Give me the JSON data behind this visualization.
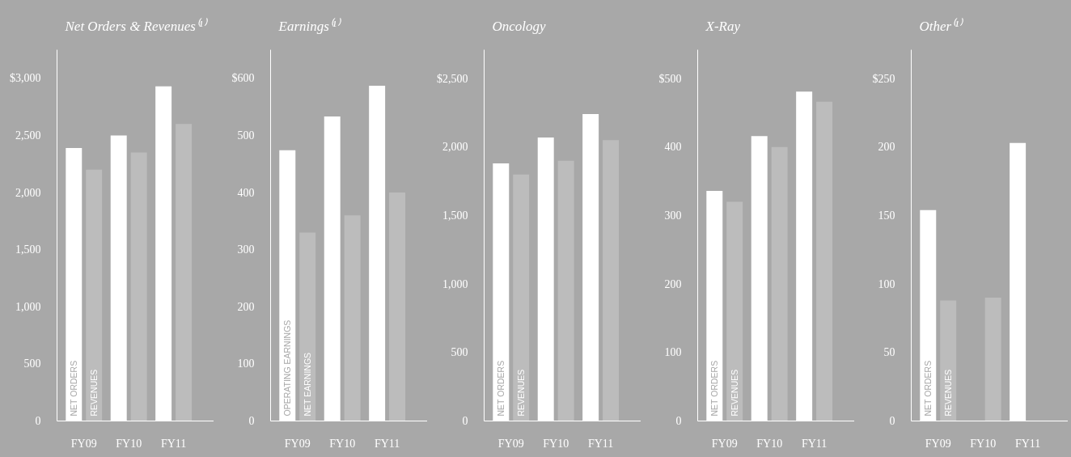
{
  "chart_data": [
    {
      "type": "bar",
      "title": "Net Orders & Revenues⁽¹⁾",
      "categories": [
        "FY09",
        "FY10",
        "FY11"
      ],
      "ylim": [
        0,
        3250
      ],
      "yticks": [
        0,
        {
          "value": 500,
          "label": "500"
        },
        {
          "value": 1000,
          "label": "1,000"
        },
        {
          "value": 1500,
          "label": "1,500"
        },
        {
          "value": 2000,
          "label": "2,000"
        },
        {
          "value": 2500,
          "label": "2,500"
        },
        {
          "value": 3000,
          "label": "$3,000"
        }
      ],
      "grid": false,
      "legend": false,
      "series": [
        {
          "name": "NET ORDERS",
          "color": "#ffffff",
          "values": [
            2390,
            2500,
            2930
          ]
        },
        {
          "name": "REVENUES",
          "color": "#bcbcbc",
          "values": [
            2200,
            2350,
            2600
          ]
        }
      ]
    },
    {
      "type": "bar",
      "title": "Earnings⁽¹⁾",
      "categories": [
        "FY09",
        "FY10",
        "FY11"
      ],
      "ylim": [
        0,
        650
      ],
      "yticks": [
        0,
        100,
        200,
        300,
        400,
        500,
        {
          "value": 600,
          "label": "$600"
        }
      ],
      "grid": false,
      "legend": false,
      "series": [
        {
          "name": "OPERATING EARNINGS",
          "color": "#ffffff",
          "values": [
            474,
            533,
            587
          ]
        },
        {
          "name": "NET EARNINGS",
          "color": "#bcbcbc",
          "values": [
            330,
            360,
            400
          ]
        }
      ]
    },
    {
      "type": "bar",
      "title": "Oncology",
      "categories": [
        "FY09",
        "FY10",
        "FY11"
      ],
      "ylim": [
        0,
        2710
      ],
      "yticks": [
        0,
        500,
        {
          "value": 1000,
          "label": "1,000"
        },
        {
          "value": 1500,
          "label": "1,500"
        },
        {
          "value": 2000,
          "label": "2,000"
        },
        {
          "value": 2500,
          "label": "$2,500"
        }
      ],
      "grid": false,
      "legend": false,
      "series": [
        {
          "name": "NET ORDERS",
          "color": "#ffffff",
          "values": [
            1880,
            2070,
            2240
          ]
        },
        {
          "name": "REVENUES",
          "color": "#bcbcbc",
          "values": [
            1800,
            1900,
            2050
          ]
        }
      ]
    },
    {
      "type": "bar",
      "title": "X-Ray",
      "categories": [
        "FY09",
        "FY10",
        "FY11"
      ],
      "ylim": [
        0,
        542
      ],
      "yticks": [
        0,
        100,
        200,
        300,
        400,
        {
          "value": 500,
          "label": "$500"
        }
      ],
      "grid": false,
      "legend": false,
      "series": [
        {
          "name": "NET ORDERS",
          "color": "#ffffff",
          "values": [
            336,
            416,
            481
          ]
        },
        {
          "name": "REVENUES",
          "color": "#bcbcbc",
          "values": [
            320,
            400,
            466
          ]
        }
      ]
    },
    {
      "type": "bar",
      "title": "Other⁽¹⁾",
      "categories": [
        "FY09",
        "FY10",
        "FY11"
      ],
      "ylim": [
        0,
        271
      ],
      "yticks": [
        0,
        50,
        100,
        150,
        200,
        {
          "value": 250,
          "label": "$250"
        }
      ],
      "grid": false,
      "legend": false,
      "series": [
        {
          "name": "NET ORDERS",
          "color": "#ffffff",
          "values": [
            154,
            null,
            203
          ]
        },
        {
          "name": "REVENUES",
          "color": "#bcbcbc",
          "values": [
            88,
            90,
            null
          ]
        }
      ]
    }
  ]
}
